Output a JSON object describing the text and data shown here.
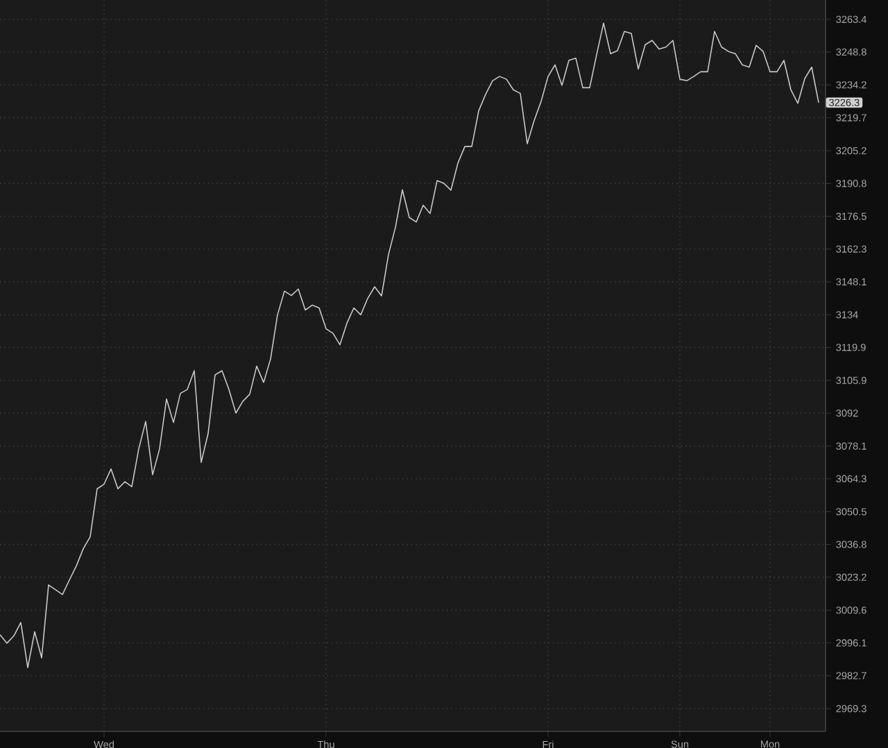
{
  "chart_data": {
    "type": "line",
    "log": "y",
    "grid": true,
    "ylim": [
      2960,
      3272
    ],
    "yticks": [
      3263.4,
      3248.8,
      3234.2,
      3219.7,
      3205.2,
      3190.8,
      3176.5,
      3162.3,
      3148.1,
      3134,
      3119.9,
      3105.9,
      3092,
      3078.1,
      3064.3,
      3050.5,
      3036.8,
      3023.2,
      3009.6,
      2996.1,
      2982.7,
      2969.3
    ],
    "categories": [
      null,
      null,
      null,
      null,
      null,
      null,
      null,
      null,
      null,
      null,
      null,
      null,
      null,
      null,
      null,
      "Wed",
      null,
      null,
      null,
      null,
      null,
      null,
      null,
      null,
      null,
      null,
      null,
      null,
      null,
      null,
      null,
      null,
      null,
      null,
      null,
      null,
      null,
      null,
      null,
      null,
      null,
      null,
      null,
      null,
      null,
      null,
      null,
      "Thu",
      null,
      null,
      null,
      null,
      null,
      null,
      null,
      null,
      null,
      null,
      null,
      null,
      null,
      null,
      null,
      null,
      null,
      null,
      null,
      null,
      null,
      null,
      null,
      null,
      null,
      null,
      null,
      null,
      null,
      null,
      null,
      "Fri",
      null,
      null,
      null,
      null,
      null,
      null,
      null,
      null,
      null,
      null,
      null,
      null,
      null,
      null,
      null,
      null,
      null,
      null,
      "Sun",
      null,
      null,
      null,
      null,
      null,
      null,
      null,
      null,
      null,
      null,
      null,
      null,
      "Mon",
      null,
      null,
      null,
      null,
      null,
      null,
      null
    ],
    "annotations": [
      "3226.3"
    ],
    "series": [
      {
        "color": "#c8c8c8",
        "values": [
          2999.5,
          2996,
          2999,
          3004.5,
          2986,
          3000.7,
          2990,
          3020,
          3018,
          3016,
          3022,
          3027.9,
          3035,
          3040,
          3060,
          3062,
          3068.4,
          3060.1,
          3063,
          3061,
          3076.9,
          3088.4,
          3066,
          3076.9,
          3098,
          3088,
          3100.4,
          3102,
          3110,
          3071.2,
          3083.3,
          3108.2,
          3110,
          3102,
          3092,
          3097,
          3100,
          3112,
          3105,
          3115,
          3134,
          3144,
          3142.2,
          3145,
          3136,
          3138,
          3136.9,
          3127.9,
          3126,
          3121.1,
          3130.3,
          3136.9,
          3134,
          3141,
          3146,
          3142,
          3159.9,
          3171.7,
          3188,
          3176,
          3174,
          3181.3,
          3177.7,
          3192,
          3190.8,
          3187.8,
          3199.7,
          3207,
          3207,
          3222.7,
          3230,
          3236,
          3238,
          3236.7,
          3232,
          3230.4,
          3208.2,
          3218.5,
          3226.9,
          3238,
          3243,
          3234,
          3245,
          3246,
          3233,
          3233,
          3247.6,
          3261.6,
          3248,
          3249.4,
          3258,
          3257,
          3241.2,
          3252,
          3254,
          3250,
          3251,
          3254,
          3236.7,
          3236,
          3238,
          3240,
          3240,
          3258,
          3251,
          3249,
          3248,
          3243,
          3242,
          3251.8,
          3249,
          3240,
          3240,
          3245,
          3232,
          3226,
          3237,
          3242,
          3226.3
        ]
      }
    ]
  }
}
